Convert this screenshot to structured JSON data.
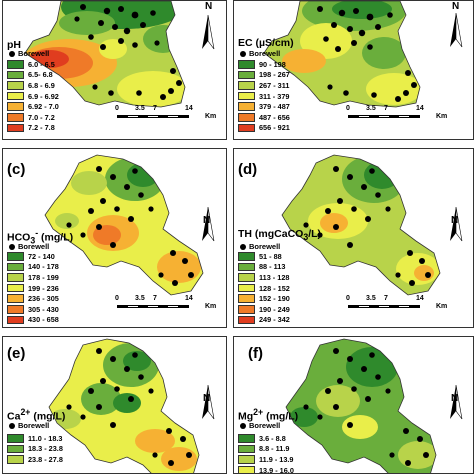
{
  "colors": [
    "#2f8a2c",
    "#6aae3c",
    "#b8d34a",
    "#e9ee4a",
    "#f6b133",
    "#ef7a28",
    "#e03d1f"
  ],
  "panels": [
    {
      "label": "",
      "param_html": "pH",
      "borewell": "Borewell",
      "legend": [
        "6.0 - 6.5",
        "6.5- 6.8",
        "6.8 - 6.9",
        "6.9 - 6.92",
        "6.92 - 7.0",
        "7.0 - 7.2",
        "7.2 - 7.8"
      ],
      "scale": [
        "0",
        "3.5",
        "7",
        "14"
      ],
      "unit": "Km",
      "north": "N"
    },
    {
      "label": "",
      "param_html": "EC (µS/cm)",
      "borewell": "Borewell",
      "legend": [
        "90 - 198",
        "198 - 267",
        "267 - 311",
        "311 - 379",
        "379 - 487",
        "487 - 656",
        "656 - 921"
      ],
      "scale": [
        "0",
        "3.5",
        "7",
        "14"
      ],
      "unit": "Km",
      "north": "N"
    },
    {
      "label": "(c)",
      "param_html": "HCO<sub>3</sub><sup>-</sup> (mg/L)",
      "borewell": "Borewell",
      "legend": [
        "72 - 140",
        "140 - 178",
        "178 - 199",
        "199 - 236",
        "236 - 305",
        "305 - 430",
        "430 - 658"
      ],
      "scale": [
        "0",
        "3.5",
        "7",
        "14"
      ],
      "unit": "Km",
      "north": "N"
    },
    {
      "label": "(d)",
      "param_html": "TH (mgCaCO<sub>3</sub>/L)",
      "borewell": "Borewell",
      "legend": [
        "51 - 88",
        "88 - 113",
        "113 - 128",
        "128 - 152",
        "152 - 190",
        "190 - 249",
        "249 - 342"
      ],
      "scale": [
        "0",
        "3.5",
        "7",
        "14"
      ],
      "unit": "Km",
      "north": "N"
    },
    {
      "label": "(e)",
      "param_html": "Ca<sup>2+</sup> (mg/L)",
      "borewell": "Borewell",
      "legend": [
        "11.0 - 18.3",
        "18.3 - 23.8",
        "23.8 - 27.8"
      ],
      "scale": [],
      "unit": "",
      "north": "N"
    },
    {
      "label": "(f)",
      "param_html": "Mg<sup>2+</sup> (mg/L)",
      "borewell": "Borewell",
      "legend": [
        "3.6 - 8.8",
        "8.8 - 11.9",
        "11.9 - 13.9",
        "13.9 - 16.0"
      ],
      "scale": [],
      "unit": "",
      "north": "N"
    }
  ]
}
